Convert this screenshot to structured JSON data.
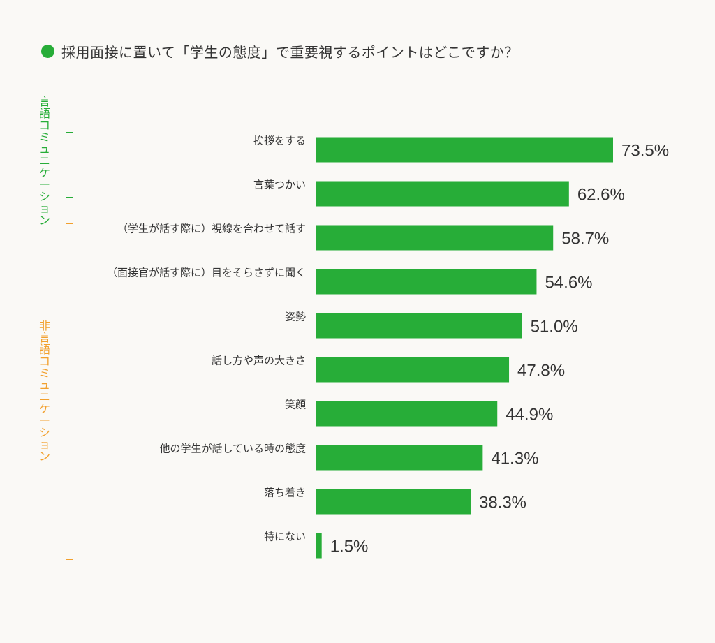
{
  "title": "採用面接に置いて「学生の態度」で重要視するポイントはどこですか？",
  "colors": {
    "bar": "#27ad38",
    "title_dot": "#27ad38",
    "verbal_group": "#27ad38",
    "nonverbal_group": "#f2a02d",
    "text": "#333333",
    "background": "#faf9f6"
  },
  "groups": [
    {
      "label": "言語コミュニケーション",
      "color": "#27ad38",
      "categories": [
        "挨拶をする",
        "言葉つかい"
      ]
    },
    {
      "label": "非言語コミュニケーション",
      "color": "#f2a02d",
      "categories": [
        "（学生が話す際に）視線を合わせて話す",
        "（面接官が話す際に）目をそらさずに聞く",
        "姿勢",
        "話し方や声の大きさ",
        "笑顔",
        "他の学生が話している時の態度",
        "落ち着き",
        "特にない"
      ]
    }
  ],
  "chart_data": {
    "type": "bar",
    "orientation": "horizontal",
    "title": "採用面接に置いて「学生の態度」で重要視するポイントはどこですか？",
    "xlabel": "",
    "ylabel": "",
    "categories": [
      "挨拶をする",
      "言葉つかい",
      "（学生が話す際に）視線を合わせて話す",
      "（面接官が話す際に）目をそらさずに聞く",
      "姿勢",
      "話し方や声の大きさ",
      "笑顔",
      "他の学生が話している時の態度",
      "落ち着き",
      "特にない"
    ],
    "values": [
      73.5,
      62.6,
      58.7,
      54.6,
      51.0,
      47.8,
      44.9,
      41.3,
      38.3,
      1.5
    ],
    "value_labels": [
      "73.5%",
      "62.6%",
      "58.7%",
      "54.6%",
      "51.0%",
      "47.8%",
      "44.9%",
      "41.3%",
      "38.3%",
      "1.5%"
    ],
    "xlim": [
      0,
      100
    ],
    "grid": false,
    "legend": "none"
  }
}
